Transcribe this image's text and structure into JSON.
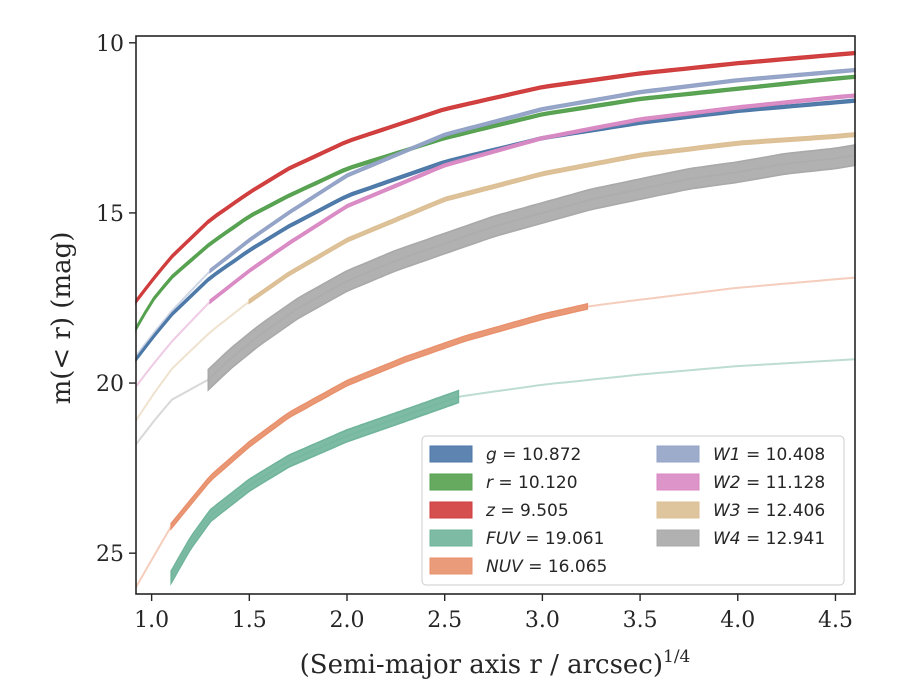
{
  "chart_data": {
    "type": "line",
    "title": "",
    "xlabel": "(Semi-major axis r / arcsec)",
    "xlabel_superscript": "1/4",
    "ylabel": "m(< r) (mag)",
    "xlim": [
      0.92,
      4.6
    ],
    "ylim": [
      26.2,
      9.8
    ],
    "y_inverted": true,
    "grid": false,
    "legend_position": "lower-right",
    "x_ticks": [
      "1.0",
      "1.5",
      "2.0",
      "2.5",
      "3.0",
      "3.5",
      "4.0",
      "4.5"
    ],
    "y_ticks": [
      "10",
      "15",
      "20",
      "25"
    ],
    "series": [
      {
        "name": "g = 10.872",
        "label_var": "g",
        "label_val": "= 10.872",
        "color": "#4c78a8",
        "band": 0.08,
        "solid_from": 0.92,
        "solid_to": 4.6,
        "x": [
          0.92,
          1.0,
          1.1,
          1.3,
          1.5,
          1.7,
          2.0,
          2.5,
          3.0,
          3.5,
          4.0,
          4.5,
          4.6
        ],
        "y": [
          19.3,
          18.7,
          18.0,
          16.9,
          16.1,
          15.4,
          14.5,
          13.5,
          12.8,
          12.35,
          12.0,
          11.75,
          11.7
        ]
      },
      {
        "name": "r = 10.120",
        "label_var": "r",
        "label_val": "= 10.120",
        "color": "#55a14f",
        "band": 0.08,
        "solid_from": 0.92,
        "solid_to": 4.6,
        "x": [
          0.92,
          1.0,
          1.1,
          1.3,
          1.5,
          1.7,
          2.0,
          2.5,
          3.0,
          3.5,
          4.0,
          4.5,
          4.6
        ],
        "y": [
          18.4,
          17.6,
          16.9,
          15.9,
          15.1,
          14.5,
          13.7,
          12.8,
          12.1,
          11.65,
          11.35,
          11.05,
          11.0
        ]
      },
      {
        "name": "z = 9.505",
        "label_var": "z",
        "label_val": "= 9.505",
        "color": "#d03c3c",
        "band": 0.08,
        "solid_from": 0.92,
        "solid_to": 4.6,
        "x": [
          0.92,
          1.0,
          1.1,
          1.3,
          1.5,
          1.7,
          2.0,
          2.5,
          3.0,
          3.5,
          4.0,
          4.5,
          4.6
        ],
        "y": [
          17.6,
          17.0,
          16.3,
          15.2,
          14.4,
          13.7,
          12.9,
          11.95,
          11.3,
          10.9,
          10.6,
          10.35,
          10.3
        ]
      },
      {
        "name": "FUV = 19.061",
        "label_var": "FUV",
        "label_val": "= 19.061",
        "color": "#6fb49b",
        "band": 0.35,
        "solid_from": 1.1,
        "solid_to": 2.57,
        "x": [
          1.1,
          1.2,
          1.3,
          1.5,
          1.7,
          2.0,
          2.3,
          2.57,
          3.0,
          3.5,
          4.0,
          4.6
        ],
        "y": [
          25.7,
          24.7,
          23.9,
          23.0,
          22.3,
          21.55,
          20.95,
          20.4,
          20.05,
          19.75,
          19.5,
          19.3
        ]
      },
      {
        "name": "NUV = 16.065",
        "label_var": "NUV",
        "label_val": "= 16.065",
        "color": "#e8916c",
        "band": 0.15,
        "solid_from": 1.1,
        "solid_to": 3.23,
        "x": [
          0.92,
          1.1,
          1.3,
          1.5,
          1.7,
          2.0,
          2.3,
          2.6,
          3.0,
          3.23,
          3.5,
          4.0,
          4.6
        ],
        "y": [
          26.0,
          24.2,
          22.8,
          21.8,
          20.95,
          20.0,
          19.3,
          18.7,
          18.05,
          17.75,
          17.55,
          17.2,
          16.9
        ]
      },
      {
        "name": "W1 = 10.408",
        "label_var": "W1",
        "label_val": "= 10.408",
        "color": "#93a3c7",
        "band": 0.08,
        "solid_from": 1.3,
        "solid_to": 4.6,
        "x": [
          0.92,
          1.0,
          1.1,
          1.3,
          1.5,
          1.7,
          2.0,
          2.5,
          3.0,
          3.5,
          4.0,
          4.5,
          4.6
        ],
        "y": [
          19.2,
          18.6,
          17.9,
          16.7,
          15.8,
          15.0,
          13.9,
          12.7,
          11.95,
          11.45,
          11.1,
          10.85,
          10.8
        ]
      },
      {
        "name": "W2 = 11.128",
        "label_var": "W2",
        "label_val": "= 11.128",
        "color": "#d989c3",
        "band": 0.08,
        "solid_from": 1.3,
        "solid_to": 4.6,
        "x": [
          0.92,
          1.0,
          1.1,
          1.3,
          1.5,
          1.7,
          2.0,
          2.5,
          3.0,
          3.5,
          4.0,
          4.5,
          4.6
        ],
        "y": [
          20.1,
          19.5,
          18.8,
          17.6,
          16.7,
          15.9,
          14.8,
          13.6,
          12.8,
          12.25,
          11.9,
          11.6,
          11.55
        ]
      },
      {
        "name": "W3 = 12.406",
        "label_var": "W3",
        "label_val": "= 12.406",
        "color": "#dcbf94",
        "band": 0.1,
        "solid_from": 1.5,
        "solid_to": 4.6,
        "x": [
          0.92,
          1.0,
          1.1,
          1.3,
          1.5,
          1.7,
          2.0,
          2.5,
          3.0,
          3.5,
          4.0,
          4.5,
          4.6
        ],
        "y": [
          21.1,
          20.4,
          19.6,
          18.5,
          17.6,
          16.8,
          15.8,
          14.6,
          13.85,
          13.3,
          12.95,
          12.75,
          12.7
        ]
      },
      {
        "name": "W4 = 12.941",
        "label_var": "W4",
        "label_val": "= 12.941",
        "color": "#a9a9a9",
        "band": 0.6,
        "solid_from": 1.29,
        "solid_to": 4.6,
        "x": [
          0.92,
          1.0,
          1.1,
          1.29,
          1.4,
          1.55,
          1.75,
          2.0,
          2.25,
          2.5,
          2.75,
          3.0,
          3.25,
          3.5,
          3.75,
          4.0,
          4.25,
          4.5,
          4.6
        ],
        "y": [
          21.8,
          21.2,
          20.5,
          19.9,
          19.3,
          18.6,
          17.8,
          17.0,
          16.4,
          15.9,
          15.4,
          15.0,
          14.6,
          14.3,
          14.0,
          13.8,
          13.55,
          13.4,
          13.3
        ]
      }
    ]
  }
}
